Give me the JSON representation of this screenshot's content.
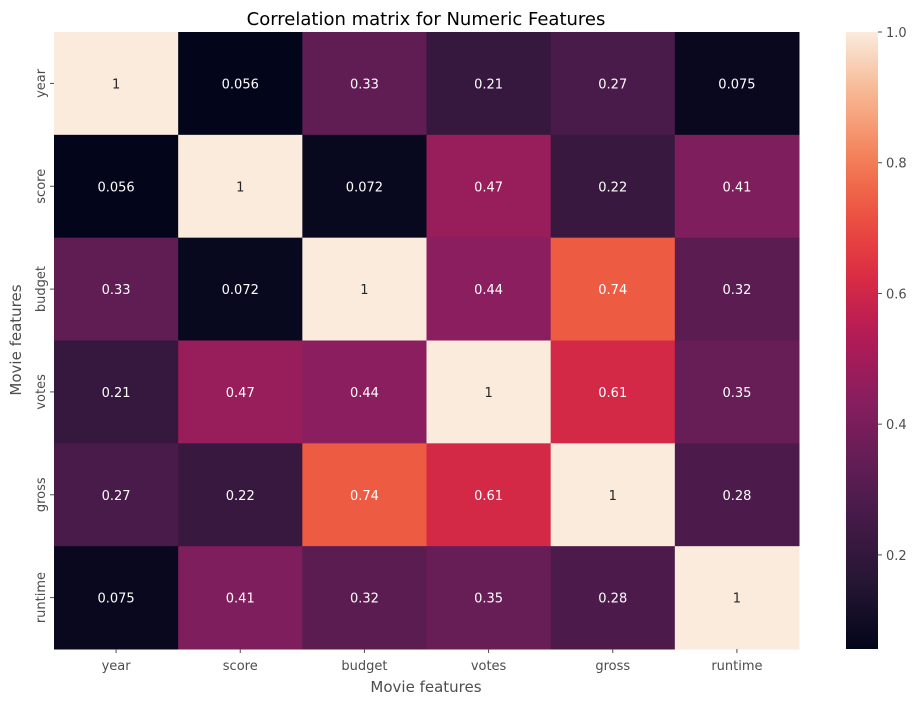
{
  "chart_data": {
    "type": "heatmap",
    "title": "Correlation matrix for Numeric Features",
    "xlabel": "Movie features",
    "ylabel": "Movie features",
    "x_categories": [
      "year",
      "score",
      "budget",
      "votes",
      "gross",
      "runtime"
    ],
    "y_categories": [
      "year",
      "score",
      "budget",
      "votes",
      "gross",
      "runtime"
    ],
    "values": [
      [
        1,
        0.056,
        0.33,
        0.21,
        0.27,
        0.075
      ],
      [
        0.056,
        1,
        0.072,
        0.47,
        0.22,
        0.41
      ],
      [
        0.33,
        0.072,
        1,
        0.44,
        0.74,
        0.32
      ],
      [
        0.21,
        0.47,
        0.44,
        1,
        0.61,
        0.35
      ],
      [
        0.27,
        0.22,
        0.74,
        0.61,
        1,
        0.28
      ],
      [
        0.075,
        0.41,
        0.32,
        0.35,
        0.28,
        1
      ]
    ],
    "cell_labels": [
      [
        "1",
        "0.056",
        "0.33",
        "0.21",
        "0.27",
        "0.075"
      ],
      [
        "0.056",
        "1",
        "0.072",
        "0.47",
        "0.22",
        "0.41"
      ],
      [
        "0.33",
        "0.072",
        "1",
        "0.44",
        "0.74",
        "0.32"
      ],
      [
        "0.21",
        "0.47",
        "0.44",
        "1",
        "0.61",
        "0.35"
      ],
      [
        "0.27",
        "0.22",
        "0.74",
        "0.61",
        "1",
        "0.28"
      ],
      [
        "0.075",
        "0.41",
        "0.32",
        "0.35",
        "0.28",
        "1"
      ]
    ],
    "colormap": "rocket",
    "colorbar": {
      "min": 0.056,
      "max": 1.0,
      "ticks": [
        0.2,
        0.4,
        0.6,
        0.8,
        1.0
      ],
      "tick_labels": [
        "0.2",
        "0.4",
        "0.6",
        "0.8",
        "1.0"
      ]
    },
    "grid": false
  }
}
